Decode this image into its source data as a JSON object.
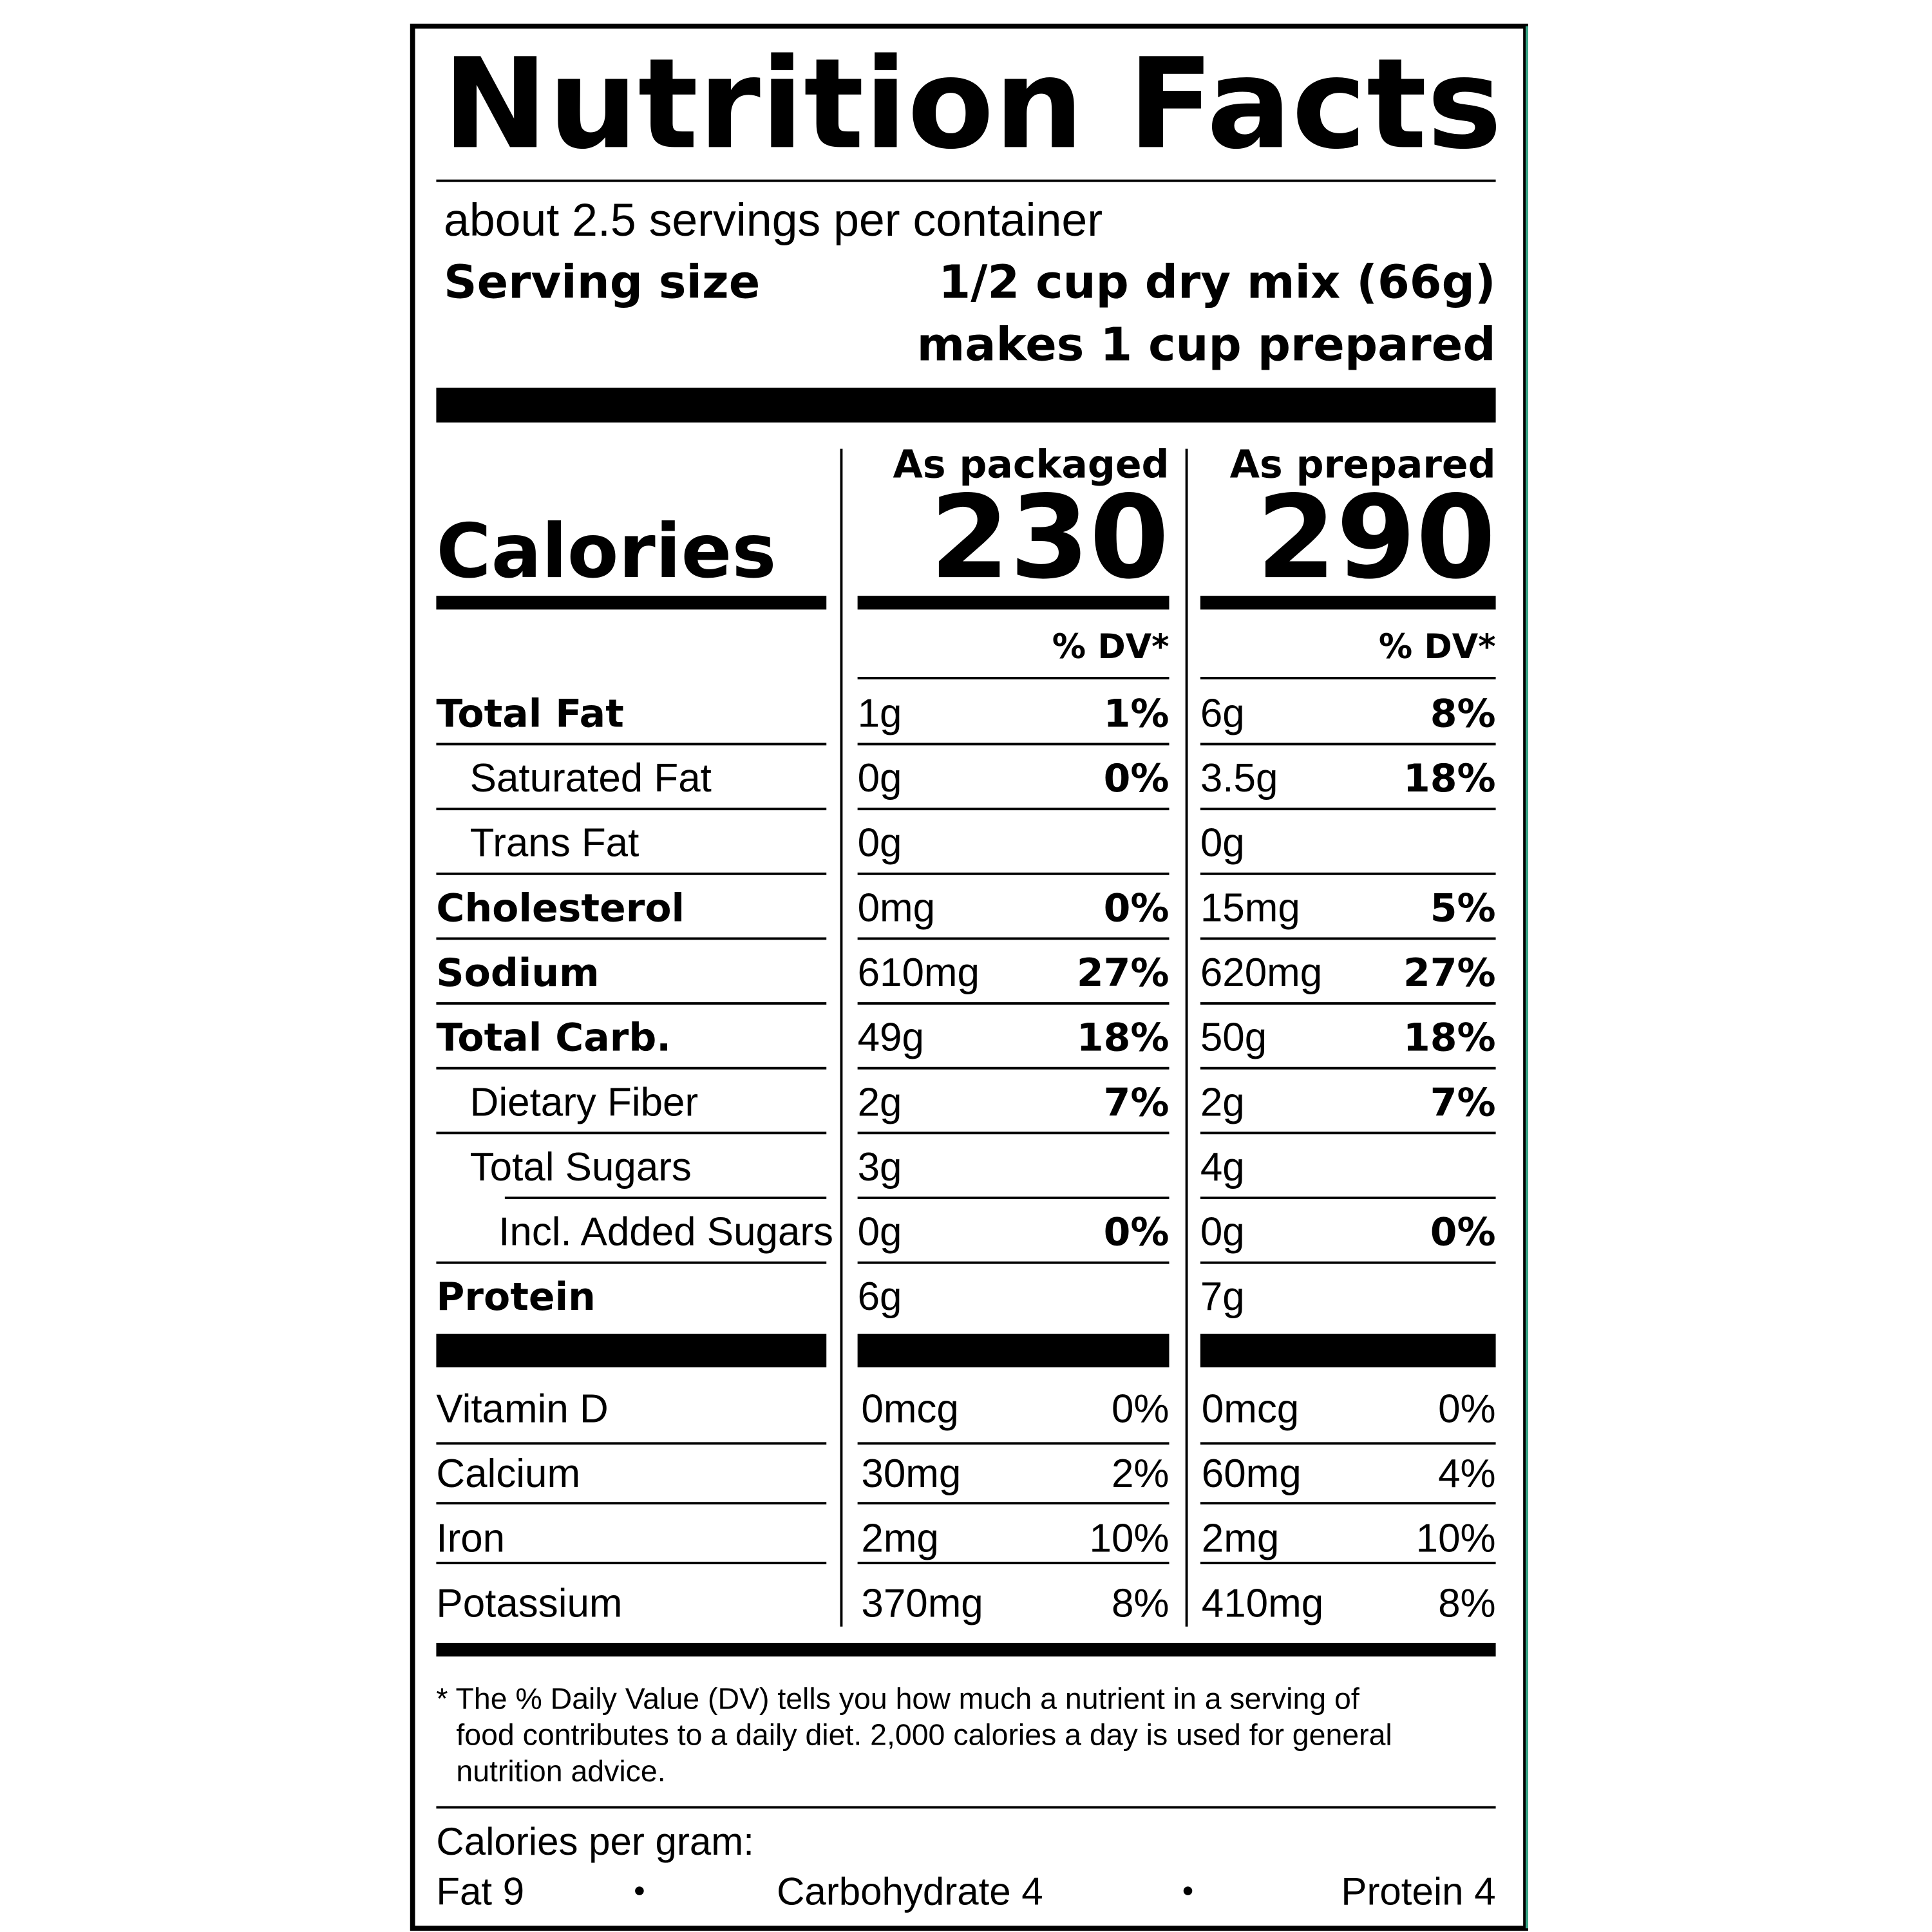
{
  "header": {
    "title": "Nutrition Facts",
    "servings": "about 2.5 servings per container",
    "serving_size_label": "Serving size",
    "serving_size": "1/2 cup dry mix (66g)",
    "prepared_note": "makes 1 cup prepared"
  },
  "calories_label": "Calories",
  "columns": [
    {
      "heading": "As packaged",
      "calories": "230",
      "dv_heading": "% DV*"
    },
    {
      "heading": "As prepared",
      "calories": "290",
      "dv_heading": "% DV*"
    }
  ],
  "nutrients": [
    {
      "name": "Total Fat",
      "values": [
        [
          "1g",
          "1%"
        ],
        [
          "6g",
          "8%"
        ]
      ]
    },
    {
      "name": "Saturated Fat",
      "values": [
        [
          "0g",
          "0%"
        ],
        [
          "3.5g",
          "18%"
        ]
      ]
    },
    {
      "name": "Trans Fat",
      "values": [
        [
          "0g",
          null
        ],
        [
          "0g",
          null
        ]
      ]
    },
    {
      "name": "Cholesterol",
      "values": [
        [
          "0mg",
          "0%"
        ],
        [
          "15mg",
          "5%"
        ]
      ]
    },
    {
      "name": "Sodium",
      "values": [
        [
          "610mg",
          "27%"
        ],
        [
          "620mg",
          "27%"
        ]
      ]
    },
    {
      "name": "Total Carb.",
      "values": [
        [
          "49g",
          "18%"
        ],
        [
          "50g",
          "18%"
        ]
      ]
    },
    {
      "name": "Dietary Fiber",
      "values": [
        [
          "2g",
          "7%"
        ],
        [
          "2g",
          "7%"
        ]
      ]
    },
    {
      "name": "Total Sugars",
      "values": [
        [
          "3g",
          null
        ],
        [
          "4g",
          null
        ]
      ]
    },
    {
      "name": "Incl. Added Sugars",
      "values": [
        [
          "0g",
          "0%"
        ],
        [
          "0g",
          "0%"
        ]
      ]
    },
    {
      "name": "Protein",
      "values": [
        [
          "6g",
          null
        ],
        [
          "7g",
          null
        ]
      ]
    }
  ],
  "vitamins": [
    {
      "name": "Vitamin D",
      "values": [
        [
          "0mcg",
          "0%"
        ],
        [
          "0mcg",
          "0%"
        ]
      ]
    },
    {
      "name": "Calcium",
      "values": [
        [
          "30mg",
          "2%"
        ],
        [
          "60mg",
          "4%"
        ]
      ]
    },
    {
      "name": "Iron",
      "values": [
        [
          "2mg",
          "10%"
        ],
        [
          "2mg",
          "10%"
        ]
      ]
    },
    {
      "name": "Potassium",
      "values": [
        [
          "370mg",
          "8%"
        ],
        [
          "410mg",
          "8%"
        ]
      ]
    }
  ],
  "footnote": [
    "* The % Daily Value (DV) tells you how much a nutrient in a serving of",
    "food contributes to a daily diet. 2,000 calories a day is used for general",
    "nutrition advice."
  ],
  "calories_per_gram": {
    "label": "Calories per gram:",
    "items": [
      "Fat 9",
      "Carbohydrate 4",
      "Protein 4"
    ]
  }
}
